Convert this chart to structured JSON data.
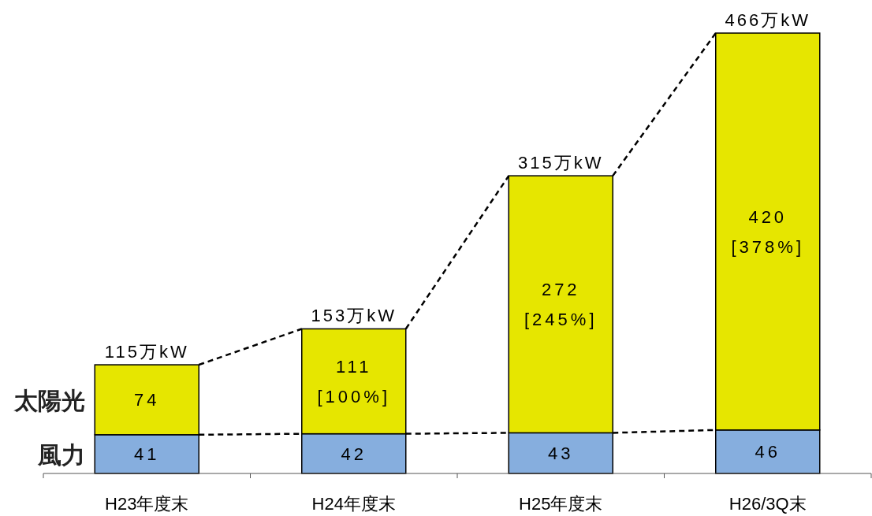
{
  "chart_data": {
    "type": "bar",
    "stacked": true,
    "categories": [
      "H23年度末",
      "H24年度末",
      "H25年度末",
      "H26/3Q末"
    ],
    "series": [
      {
        "name": "風力",
        "color": "#86aede",
        "values": [
          41,
          42,
          43,
          46
        ],
        "value_labels": [
          "41",
          "42",
          "43",
          "46"
        ]
      },
      {
        "name": "太陽光",
        "color": "#e6e600",
        "values": [
          74,
          111,
          272,
          420
        ],
        "value_labels": [
          "74",
          "111\n[100%]",
          "272\n[245%]",
          "420\n[378%]"
        ]
      }
    ],
    "totals": [
      "115万kW",
      "153万kW",
      "315万kW",
      "466万kW"
    ]
  }
}
